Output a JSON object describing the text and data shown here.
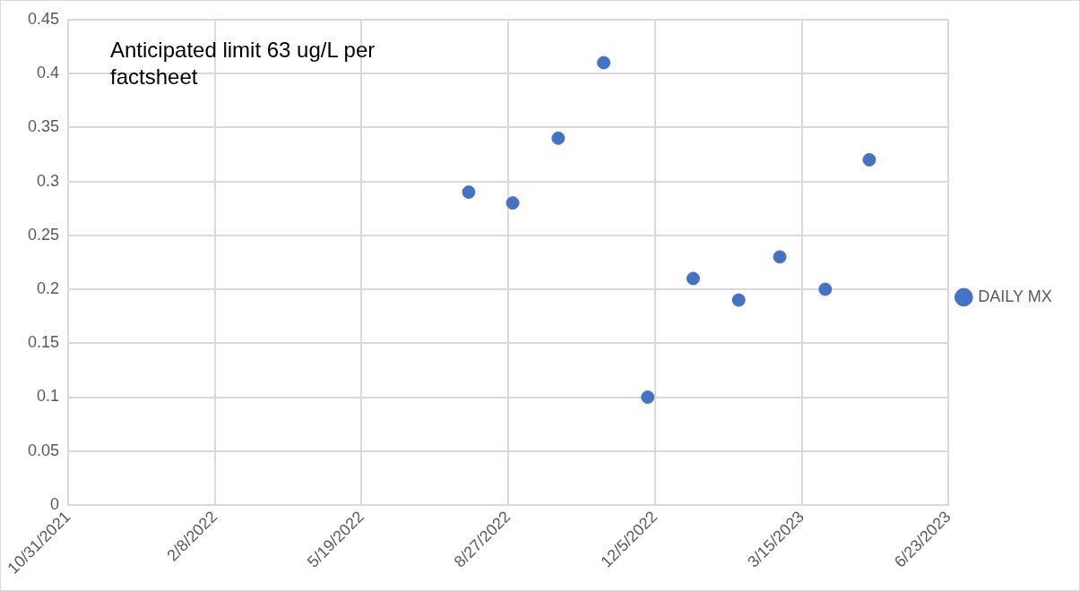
{
  "chart_data": {
    "type": "scatter",
    "annotations": [
      "Anticipated limit 63 ug/L per factsheet"
    ],
    "series": [
      {
        "name": "DAILY MX",
        "color": "#4472c4",
        "x": [
          "2022-07-31",
          "2022-08-30",
          "2022-09-30",
          "2022-10-31",
          "2022-11-30",
          "2022-12-31",
          "2023-01-31",
          "2023-02-28",
          "2023-03-31",
          "2023-04-30"
        ],
        "values": [
          0.29,
          0.28,
          0.34,
          0.41,
          0.1,
          0.21,
          0.19,
          0.23,
          0.2,
          0.32
        ]
      }
    ],
    "xlim": [
      "2021-10-31",
      "2023-06-23"
    ],
    "xticks": [
      {
        "value": "2021-10-31",
        "label": "10/31/2021"
      },
      {
        "value": "2022-02-08",
        "label": "2/8/2022"
      },
      {
        "value": "2022-05-19",
        "label": "5/19/2022"
      },
      {
        "value": "2022-08-27",
        "label": "8/27/2022"
      },
      {
        "value": "2022-12-05",
        "label": "12/5/2022"
      },
      {
        "value": "2023-03-15",
        "label": "3/15/2023"
      },
      {
        "value": "2023-06-23",
        "label": "6/23/2023"
      }
    ],
    "ylim": [
      0,
      0.45
    ],
    "yticks": [
      0,
      0.05,
      0.1,
      0.15,
      0.2,
      0.25,
      0.3,
      0.35,
      0.4,
      0.45
    ],
    "grid": true,
    "legend": "right",
    "marker": "circle"
  }
}
